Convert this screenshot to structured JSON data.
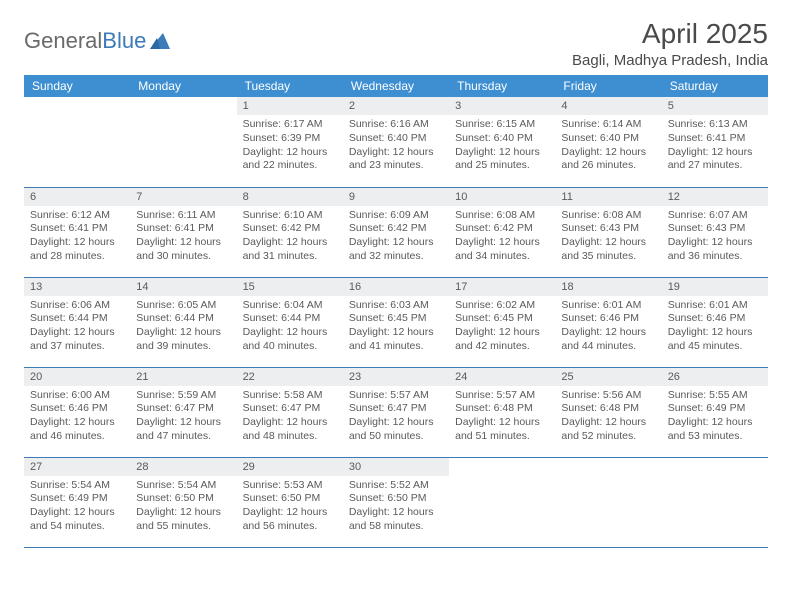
{
  "logo": {
    "text_prefix": "General",
    "text_suffix": "Blue",
    "color_prefix": "#6a6a6a",
    "color_suffix": "#3d7ab8",
    "icon_color": "#3d7ab8"
  },
  "title": "April 2025",
  "location": "Bagli, Madhya Pradesh, India",
  "colors": {
    "header_bg": "#3d8fd1",
    "header_text": "#ffffff",
    "daynum_bg": "#eceeef",
    "row_divider": "#3d7ab8",
    "body_text": "#5a5a5a",
    "page_bg": "#ffffff"
  },
  "weekdays": [
    "Sunday",
    "Monday",
    "Tuesday",
    "Wednesday",
    "Thursday",
    "Friday",
    "Saturday"
  ],
  "weeks": [
    [
      null,
      null,
      {
        "n": "1",
        "sunrise": "6:17 AM",
        "sunset": "6:39 PM",
        "day_h": "12",
        "day_m": "22"
      },
      {
        "n": "2",
        "sunrise": "6:16 AM",
        "sunset": "6:40 PM",
        "day_h": "12",
        "day_m": "23"
      },
      {
        "n": "3",
        "sunrise": "6:15 AM",
        "sunset": "6:40 PM",
        "day_h": "12",
        "day_m": "25"
      },
      {
        "n": "4",
        "sunrise": "6:14 AM",
        "sunset": "6:40 PM",
        "day_h": "12",
        "day_m": "26"
      },
      {
        "n": "5",
        "sunrise": "6:13 AM",
        "sunset": "6:41 PM",
        "day_h": "12",
        "day_m": "27"
      }
    ],
    [
      {
        "n": "6",
        "sunrise": "6:12 AM",
        "sunset": "6:41 PM",
        "day_h": "12",
        "day_m": "28"
      },
      {
        "n": "7",
        "sunrise": "6:11 AM",
        "sunset": "6:41 PM",
        "day_h": "12",
        "day_m": "30"
      },
      {
        "n": "8",
        "sunrise": "6:10 AM",
        "sunset": "6:42 PM",
        "day_h": "12",
        "day_m": "31"
      },
      {
        "n": "9",
        "sunrise": "6:09 AM",
        "sunset": "6:42 PM",
        "day_h": "12",
        "day_m": "32"
      },
      {
        "n": "10",
        "sunrise": "6:08 AM",
        "sunset": "6:42 PM",
        "day_h": "12",
        "day_m": "34"
      },
      {
        "n": "11",
        "sunrise": "6:08 AM",
        "sunset": "6:43 PM",
        "day_h": "12",
        "day_m": "35"
      },
      {
        "n": "12",
        "sunrise": "6:07 AM",
        "sunset": "6:43 PM",
        "day_h": "12",
        "day_m": "36"
      }
    ],
    [
      {
        "n": "13",
        "sunrise": "6:06 AM",
        "sunset": "6:44 PM",
        "day_h": "12",
        "day_m": "37"
      },
      {
        "n": "14",
        "sunrise": "6:05 AM",
        "sunset": "6:44 PM",
        "day_h": "12",
        "day_m": "39"
      },
      {
        "n": "15",
        "sunrise": "6:04 AM",
        "sunset": "6:44 PM",
        "day_h": "12",
        "day_m": "40"
      },
      {
        "n": "16",
        "sunrise": "6:03 AM",
        "sunset": "6:45 PM",
        "day_h": "12",
        "day_m": "41"
      },
      {
        "n": "17",
        "sunrise": "6:02 AM",
        "sunset": "6:45 PM",
        "day_h": "12",
        "day_m": "42"
      },
      {
        "n": "18",
        "sunrise": "6:01 AM",
        "sunset": "6:46 PM",
        "day_h": "12",
        "day_m": "44"
      },
      {
        "n": "19",
        "sunrise": "6:01 AM",
        "sunset": "6:46 PM",
        "day_h": "12",
        "day_m": "45"
      }
    ],
    [
      {
        "n": "20",
        "sunrise": "6:00 AM",
        "sunset": "6:46 PM",
        "day_h": "12",
        "day_m": "46"
      },
      {
        "n": "21",
        "sunrise": "5:59 AM",
        "sunset": "6:47 PM",
        "day_h": "12",
        "day_m": "47"
      },
      {
        "n": "22",
        "sunrise": "5:58 AM",
        "sunset": "6:47 PM",
        "day_h": "12",
        "day_m": "48"
      },
      {
        "n": "23",
        "sunrise": "5:57 AM",
        "sunset": "6:47 PM",
        "day_h": "12",
        "day_m": "50"
      },
      {
        "n": "24",
        "sunrise": "5:57 AM",
        "sunset": "6:48 PM",
        "day_h": "12",
        "day_m": "51"
      },
      {
        "n": "25",
        "sunrise": "5:56 AM",
        "sunset": "6:48 PM",
        "day_h": "12",
        "day_m": "52"
      },
      {
        "n": "26",
        "sunrise": "5:55 AM",
        "sunset": "6:49 PM",
        "day_h": "12",
        "day_m": "53"
      }
    ],
    [
      {
        "n": "27",
        "sunrise": "5:54 AM",
        "sunset": "6:49 PM",
        "day_h": "12",
        "day_m": "54"
      },
      {
        "n": "28",
        "sunrise": "5:54 AM",
        "sunset": "6:50 PM",
        "day_h": "12",
        "day_m": "55"
      },
      {
        "n": "29",
        "sunrise": "5:53 AM",
        "sunset": "6:50 PM",
        "day_h": "12",
        "day_m": "56"
      },
      {
        "n": "30",
        "sunrise": "5:52 AM",
        "sunset": "6:50 PM",
        "day_h": "12",
        "day_m": "58"
      },
      null,
      null,
      null
    ]
  ]
}
